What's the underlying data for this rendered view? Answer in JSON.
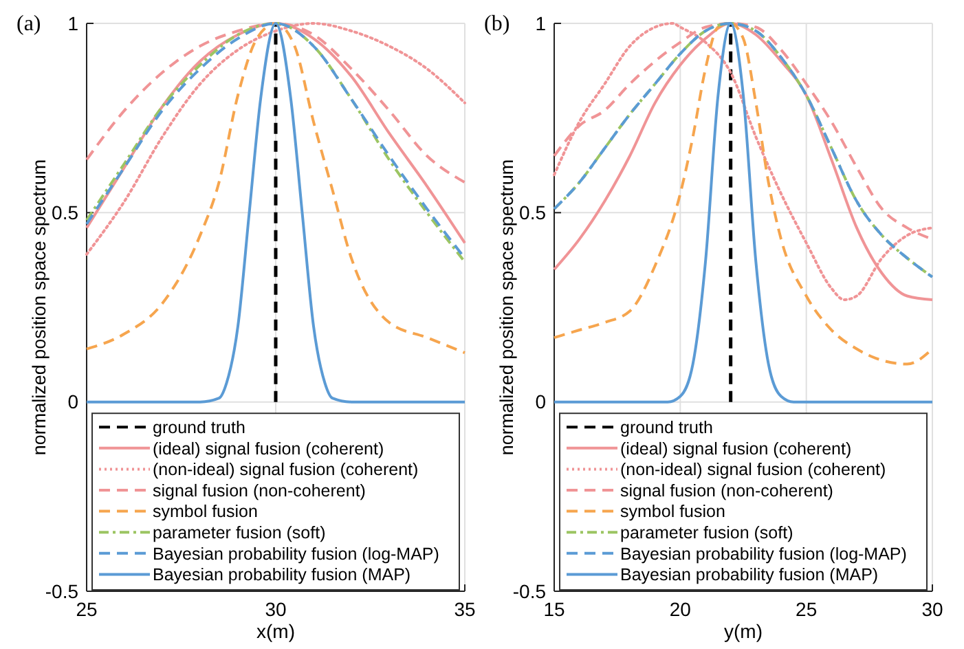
{
  "chart_data": [
    {
      "type": "line",
      "title": "(a)",
      "xlabel": "x(m)",
      "ylabel": "normalized position space spectrum",
      "xlim": [
        25,
        35
      ],
      "xticks": [
        25,
        30,
        35
      ],
      "ylim": [
        -0.5,
        1
      ],
      "yticks": [
        -0.5,
        0,
        0.5,
        1
      ],
      "grid": true,
      "legend": "bottom",
      "series": [
        {
          "name": "ground truth",
          "color": "#000000",
          "line_style": "dashed",
          "x": [
            30,
            30
          ],
          "values": [
            0,
            1
          ]
        },
        {
          "name": "(ideal) signal fusion (coherent)",
          "color": "#f09496",
          "line_style": "solid",
          "x": [
            25,
            26,
            27,
            28,
            29,
            30,
            31,
            32,
            33,
            34,
            35
          ],
          "values": [
            0.46,
            0.62,
            0.78,
            0.9,
            0.97,
            1,
            0.96,
            0.86,
            0.71,
            0.57,
            0.42
          ]
        },
        {
          "name": "(non-ideal) signal fusion (coherent)",
          "color": "#f09496",
          "line_style": "dotted",
          "x": [
            25,
            26,
            27,
            28,
            29,
            30,
            31,
            32,
            33,
            34,
            35
          ],
          "values": [
            0.39,
            0.53,
            0.7,
            0.84,
            0.93,
            0.98,
            1,
            0.98,
            0.94,
            0.88,
            0.79
          ]
        },
        {
          "name": "signal fusion (non-coherent)",
          "color": "#f09496",
          "line_style": "dashed",
          "x": [
            25,
            26,
            27,
            28,
            29,
            30,
            31,
            32,
            33,
            34,
            35
          ],
          "values": [
            0.64,
            0.77,
            0.87,
            0.94,
            0.98,
            1,
            0.97,
            0.88,
            0.77,
            0.65,
            0.58
          ]
        },
        {
          "name": "symbol fusion",
          "color": "#f6a54e",
          "line_style": "dashed",
          "x": [
            25,
            26,
            27,
            28,
            28.5,
            29,
            29.5,
            30,
            30.5,
            31,
            31.5,
            32,
            33,
            34,
            35
          ],
          "values": [
            0.14,
            0.18,
            0.26,
            0.44,
            0.58,
            0.81,
            0.96,
            1,
            0.94,
            0.74,
            0.56,
            0.38,
            0.21,
            0.17,
            0.13
          ]
        },
        {
          "name": "parameter fusion (soft)",
          "color": "#9cc563",
          "line_style": "dashdot",
          "x": [
            25,
            26,
            27,
            28,
            29,
            30,
            31,
            32,
            33,
            34,
            35
          ],
          "values": [
            0.48,
            0.63,
            0.78,
            0.89,
            0.97,
            1,
            0.94,
            0.8,
            0.64,
            0.5,
            0.37
          ]
        },
        {
          "name": "Bayesian probability fusion (log-MAP)",
          "color": "#5b9bd5",
          "line_style": "dashed",
          "x": [
            25,
            26,
            27,
            28,
            29,
            30,
            31,
            32,
            33,
            34,
            35
          ],
          "values": [
            0.47,
            0.62,
            0.77,
            0.88,
            0.96,
            1,
            0.94,
            0.8,
            0.65,
            0.51,
            0.38
          ]
        },
        {
          "name": "Bayesian probability fusion (MAP)",
          "color": "#5b9bd5",
          "line_style": "solid",
          "x": [
            25,
            28,
            28.5,
            28.7,
            29,
            29.3,
            29.6,
            30,
            30.4,
            30.7,
            31,
            31.3,
            31.5,
            32,
            35
          ],
          "values": [
            0,
            0,
            0.01,
            0.05,
            0.2,
            0.5,
            0.8,
            1,
            0.8,
            0.5,
            0.2,
            0.05,
            0.01,
            0,
            0
          ]
        }
      ]
    },
    {
      "type": "line",
      "title": "(b)",
      "xlabel": "y(m)",
      "ylabel": "normalized position space spectrum",
      "xlim": [
        15,
        30
      ],
      "xticks": [
        15,
        20,
        25,
        30
      ],
      "ylim": [
        -0.5,
        1
      ],
      "yticks": [
        -0.5,
        0,
        0.5,
        1
      ],
      "grid": true,
      "legend": "bottom",
      "series": [
        {
          "name": "ground truth",
          "color": "#000000",
          "line_style": "dashed",
          "x": [
            22,
            22
          ],
          "values": [
            0,
            1
          ]
        },
        {
          "name": "(ideal) signal fusion (coherent)",
          "color": "#f09496",
          "line_style": "solid",
          "x": [
            15,
            16,
            17,
            18,
            19,
            20,
            21,
            22,
            23,
            24,
            25,
            26,
            27,
            28,
            29,
            30
          ],
          "values": [
            0.35,
            0.43,
            0.53,
            0.65,
            0.79,
            0.89,
            0.96,
            1,
            0.97,
            0.9,
            0.81,
            0.64,
            0.46,
            0.34,
            0.28,
            0.27
          ]
        },
        {
          "name": "(non-ideal) signal fusion (coherent)",
          "color": "#f09496",
          "line_style": "dotted",
          "x": [
            15,
            16,
            17,
            18,
            19,
            19.7,
            20,
            21,
            22,
            23,
            24,
            25,
            26,
            26.5,
            27,
            28,
            29,
            30
          ],
          "values": [
            0.6,
            0.74,
            0.84,
            0.94,
            0.99,
            1,
            0.99,
            0.95,
            0.87,
            0.7,
            0.55,
            0.42,
            0.3,
            0.27,
            0.28,
            0.38,
            0.44,
            0.46
          ]
        },
        {
          "name": "signal fusion (non-coherent)",
          "color": "#f09496",
          "line_style": "dashed",
          "x": [
            15,
            16,
            17,
            18,
            19,
            20,
            21,
            22,
            23,
            24,
            25,
            26,
            27,
            28,
            29,
            30
          ],
          "values": [
            0.65,
            0.73,
            0.77,
            0.84,
            0.9,
            0.95,
            0.99,
            1,
            0.99,
            0.93,
            0.84,
            0.74,
            0.62,
            0.51,
            0.46,
            0.43
          ]
        },
        {
          "name": "symbol fusion",
          "color": "#f6a54e",
          "line_style": "dashed",
          "x": [
            15,
            16,
            17,
            18,
            19,
            20,
            20.5,
            21,
            21.5,
            22,
            22.5,
            23,
            23.5,
            24,
            25,
            26,
            27,
            28,
            29,
            30
          ],
          "values": [
            0.17,
            0.19,
            0.21,
            0.24,
            0.36,
            0.55,
            0.7,
            0.88,
            0.99,
            1,
            0.96,
            0.79,
            0.58,
            0.43,
            0.28,
            0.19,
            0.14,
            0.11,
            0.1,
            0.14
          ]
        },
        {
          "name": "parameter fusion (soft)",
          "color": "#9cc563",
          "line_style": "dashdot",
          "x": [
            15,
            16,
            17,
            18,
            19,
            20,
            21,
            22,
            23,
            24,
            25,
            26,
            27,
            28,
            29,
            30
          ],
          "values": [
            0.51,
            0.58,
            0.67,
            0.76,
            0.84,
            0.92,
            0.98,
            1,
            0.98,
            0.91,
            0.81,
            0.67,
            0.53,
            0.44,
            0.38,
            0.33
          ]
        },
        {
          "name": "Bayesian probability fusion (log-MAP)",
          "color": "#5b9bd5",
          "line_style": "dashed",
          "x": [
            15,
            16,
            17,
            18,
            19,
            20,
            21,
            22,
            23,
            24,
            25,
            26,
            27,
            28,
            29,
            30
          ],
          "values": [
            0.51,
            0.58,
            0.67,
            0.76,
            0.84,
            0.92,
            0.98,
            1,
            0.98,
            0.91,
            0.81,
            0.67,
            0.53,
            0.44,
            0.38,
            0.33
          ]
        },
        {
          "name": "Bayesian probability fusion (MAP)",
          "color": "#5b9bd5",
          "line_style": "solid",
          "x": [
            15,
            19.5,
            20,
            20.5,
            21,
            21.5,
            22,
            22.5,
            23,
            23.5,
            24,
            24.5,
            30
          ],
          "values": [
            0,
            0,
            0.015,
            0.1,
            0.37,
            0.81,
            1,
            0.81,
            0.37,
            0.1,
            0.015,
            0,
            0
          ]
        }
      ]
    }
  ]
}
